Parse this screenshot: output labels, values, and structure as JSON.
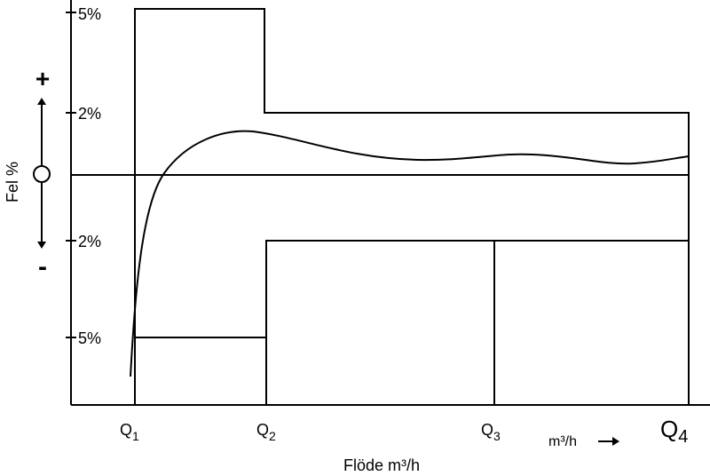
{
  "y_axis": {
    "label": "Fel %",
    "plus": "+",
    "minus": "-",
    "ticks": [
      "5%",
      "2%",
      "2%",
      "5%"
    ]
  },
  "x_axis": {
    "flow_labels": [
      {
        "text": "Q",
        "sub": "1"
      },
      {
        "text": "Q",
        "sub": "2"
      },
      {
        "text": "Q",
        "sub": "3"
      },
      {
        "text": "Q",
        "sub": "4"
      }
    ],
    "unit": "m³/h",
    "label": "Flöde m³/h"
  }
}
